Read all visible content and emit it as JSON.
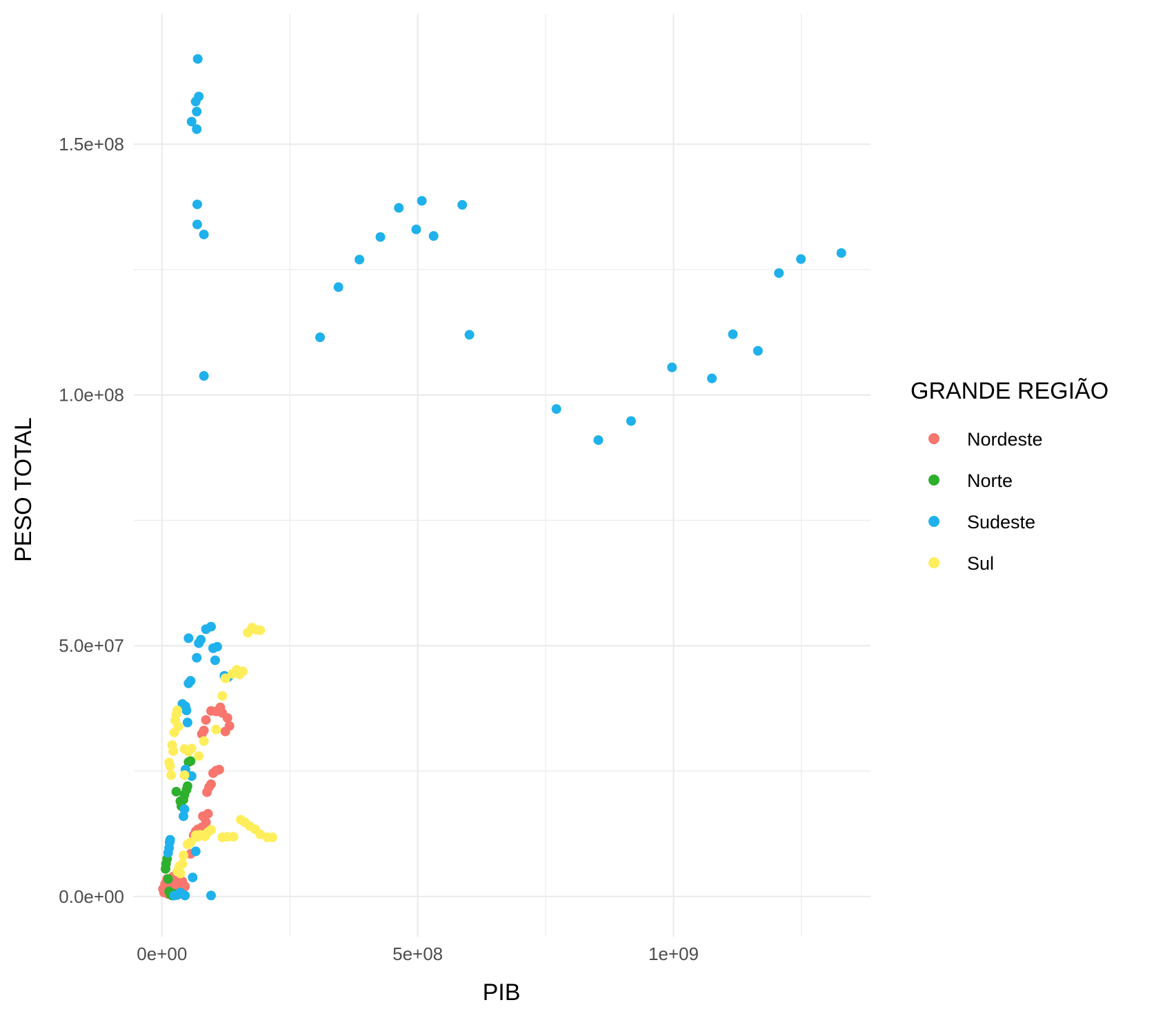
{
  "chart_data": {
    "type": "scatter",
    "xlabel": "PIB",
    "ylabel": "PESO TOTAL",
    "xlim": [
      -55000000,
      1385000000
    ],
    "ylim": [
      -8000000,
      176000000
    ],
    "x_ticks": [
      {
        "value": 0,
        "label": "0e+00"
      },
      {
        "value": 500000000,
        "label": "5e+08"
      },
      {
        "value": 1000000000,
        "label": "1e+09"
      }
    ],
    "x_minor": [
      250000000,
      750000000,
      1250000000
    ],
    "y_ticks": [
      {
        "value": 0,
        "label": "0.0e+00"
      },
      {
        "value": 50000000,
        "label": "5.0e+07"
      },
      {
        "value": 100000000,
        "label": "1.0e+08"
      },
      {
        "value": 150000000,
        "label": "1.5e+08"
      }
    ],
    "y_minor": [
      25000000,
      75000000,
      125000000
    ],
    "grid": true,
    "legend": {
      "title": "GRANDE REGIÃO",
      "position": "right"
    },
    "series": [
      {
        "name": "Nordeste",
        "color": "#F8766D",
        "points": [
          [
            2000000,
            1500000
          ],
          [
            4000000,
            800000
          ],
          [
            6000000,
            2500000
          ],
          [
            8000000,
            1200000
          ],
          [
            10000000,
            3500000
          ],
          [
            12000000,
            500000
          ],
          [
            14000000,
            2000000
          ],
          [
            16000000,
            1000000
          ],
          [
            18000000,
            3000000
          ],
          [
            20000000,
            1800000
          ],
          [
            22000000,
            4000000
          ],
          [
            25000000,
            2500000
          ],
          [
            28000000,
            1500000
          ],
          [
            30000000,
            3500000
          ],
          [
            32000000,
            3800000
          ],
          [
            36000000,
            2200000
          ],
          [
            40000000,
            3000000
          ],
          [
            45000000,
            2000000
          ],
          [
            56000000,
            8500000
          ],
          [
            62000000,
            12200000
          ],
          [
            66000000,
            13000000
          ],
          [
            70000000,
            13400000
          ],
          [
            74000000,
            12400000
          ],
          [
            78000000,
            13800000
          ],
          [
            80000000,
            16000000
          ],
          [
            86000000,
            14800000
          ],
          [
            90000000,
            16500000
          ],
          [
            88000000,
            20800000
          ],
          [
            92000000,
            21800000
          ],
          [
            96000000,
            22400000
          ],
          [
            100000000,
            24600000
          ],
          [
            106000000,
            25100000
          ],
          [
            112000000,
            25300000
          ],
          [
            78000000,
            32400000
          ],
          [
            82000000,
            33100000
          ],
          [
            86000000,
            35200000
          ],
          [
            96000000,
            37000000
          ],
          [
            106000000,
            36900000
          ],
          [
            114000000,
            37700000
          ],
          [
            118000000,
            36600000
          ],
          [
            124000000,
            32900000
          ],
          [
            128000000,
            35600000
          ],
          [
            132000000,
            34000000
          ]
        ]
      },
      {
        "name": "Norte",
        "color": "#2EAF2E",
        "points": [
          [
            7000000,
            5500000
          ],
          [
            8000000,
            6500000
          ],
          [
            10000000,
            7500000
          ],
          [
            12000000,
            3500000
          ],
          [
            14000000,
            1000000
          ],
          [
            17000000,
            400000
          ],
          [
            20000000,
            200000
          ],
          [
            22000000,
            600000
          ],
          [
            28000000,
            20900000
          ],
          [
            36000000,
            19000000
          ],
          [
            38000000,
            18000000
          ],
          [
            42000000,
            19300000
          ],
          [
            44000000,
            20300000
          ],
          [
            48000000,
            21300000
          ],
          [
            50000000,
            22000000
          ],
          [
            52000000,
            26800000
          ],
          [
            56000000,
            27000000
          ]
        ]
      },
      {
        "name": "Sudeste",
        "color": "#1FB1EB",
        "points": [
          [
            70000000,
            167000000
          ],
          [
            72000000,
            159500000
          ],
          [
            66000000,
            158500000
          ],
          [
            68000000,
            156500000
          ],
          [
            58000000,
            154500000
          ],
          [
            68000000,
            153000000
          ],
          [
            69000000,
            138000000
          ],
          [
            69000000,
            134000000
          ],
          [
            82000000,
            132000000
          ],
          [
            82000000,
            103800000
          ],
          [
            309000000,
            111500000
          ],
          [
            345000000,
            121500000
          ],
          [
            386000000,
            127000000
          ],
          [
            427000000,
            131500000
          ],
          [
            463000000,
            137300000
          ],
          [
            497000000,
            133000000
          ],
          [
            508000000,
            138700000
          ],
          [
            531000000,
            131700000
          ],
          [
            587000000,
            137900000
          ],
          [
            601000000,
            112000000
          ],
          [
            771000000,
            97200000
          ],
          [
            853000000,
            91000000
          ],
          [
            917000000,
            94800000
          ],
          [
            997000000,
            105500000
          ],
          [
            1075000000,
            103300000
          ],
          [
            1116000000,
            112100000
          ],
          [
            1165000000,
            108800000
          ],
          [
            1206000000,
            124300000
          ],
          [
            1249000000,
            127100000
          ],
          [
            1328000000,
            128300000
          ],
          [
            52000000,
            51500000
          ],
          [
            68000000,
            47600000
          ],
          [
            72000000,
            50500000
          ],
          [
            76000000,
            51200000
          ],
          [
            86000000,
            53300000
          ],
          [
            96000000,
            53800000
          ],
          [
            100000000,
            49500000
          ],
          [
            104000000,
            47100000
          ],
          [
            108000000,
            49800000
          ],
          [
            122000000,
            44000000
          ],
          [
            130000000,
            43800000
          ],
          [
            52000000,
            42500000
          ],
          [
            56000000,
            43000000
          ],
          [
            40000000,
            38400000
          ],
          [
            46000000,
            37900000
          ],
          [
            48000000,
            37100000
          ],
          [
            50000000,
            34700000
          ],
          [
            58000000,
            24000000
          ],
          [
            46000000,
            25300000
          ],
          [
            44000000,
            17400000
          ],
          [
            42000000,
            16000000
          ],
          [
            66000000,
            9000000
          ],
          [
            60000000,
            3800000
          ],
          [
            15000000,
            10800000
          ],
          [
            16000000,
            11300000
          ],
          [
            14000000,
            9700000
          ],
          [
            12000000,
            8700000
          ],
          [
            45000000,
            200000
          ],
          [
            96000000,
            200000
          ],
          [
            24000000,
            200000
          ],
          [
            30000000,
            300000
          ],
          [
            36000000,
            800000
          ]
        ]
      },
      {
        "name": "Sul",
        "color": "#FFEE5C",
        "points": [
          [
            14000000,
            26700000
          ],
          [
            16000000,
            26000000
          ],
          [
            18000000,
            24200000
          ],
          [
            20000000,
            30200000
          ],
          [
            22000000,
            29000000
          ],
          [
            24000000,
            32700000
          ],
          [
            26000000,
            35100000
          ],
          [
            28000000,
            36300000
          ],
          [
            30000000,
            37100000
          ],
          [
            32000000,
            33900000
          ],
          [
            44000000,
            29400000
          ],
          [
            52000000,
            28900000
          ],
          [
            58000000,
            29500000
          ],
          [
            72000000,
            28000000
          ],
          [
            82000000,
            31000000
          ],
          [
            106000000,
            33300000
          ],
          [
            118000000,
            40000000
          ],
          [
            124000000,
            43500000
          ],
          [
            138000000,
            44400000
          ],
          [
            146000000,
            45200000
          ],
          [
            152000000,
            44300000
          ],
          [
            158000000,
            44900000
          ],
          [
            168000000,
            52600000
          ],
          [
            176000000,
            53600000
          ],
          [
            184000000,
            53200000
          ],
          [
            192000000,
            53100000
          ],
          [
            66000000,
            12200000
          ],
          [
            70000000,
            11900000
          ],
          [
            74000000,
            12300000
          ],
          [
            80000000,
            12200000
          ],
          [
            84000000,
            12000000
          ],
          [
            90000000,
            12800000
          ],
          [
            96000000,
            13300000
          ],
          [
            118000000,
            11800000
          ],
          [
            128000000,
            11900000
          ],
          [
            140000000,
            11900000
          ],
          [
            154000000,
            15300000
          ],
          [
            162000000,
            14800000
          ],
          [
            172000000,
            14000000
          ],
          [
            182000000,
            13400000
          ],
          [
            192000000,
            12400000
          ],
          [
            206000000,
            11800000
          ],
          [
            216000000,
            11800000
          ],
          [
            36000000,
            4600000
          ],
          [
            40000000,
            6500000
          ],
          [
            42000000,
            8200000
          ],
          [
            50000000,
            10400000
          ],
          [
            56000000,
            10800000
          ],
          [
            44000000,
            24200000
          ],
          [
            30000000,
            5000000
          ],
          [
            34000000,
            6000000
          ]
        ]
      }
    ]
  }
}
